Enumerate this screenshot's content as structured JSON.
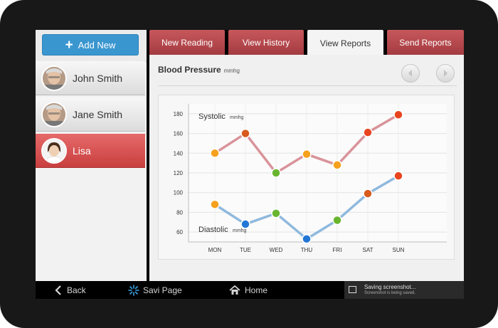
{
  "sidebar": {
    "add_label": "Add New",
    "contacts": [
      {
        "name": "John Smith"
      },
      {
        "name": "Jane Smith"
      },
      {
        "name": "Lisa"
      }
    ]
  },
  "tabs": [
    {
      "label": "New Reading"
    },
    {
      "label": "View History"
    },
    {
      "label": "View Reports"
    },
    {
      "label": "Send Reports"
    }
  ],
  "panel": {
    "title": "Blood Pressure",
    "unit": "mmhg"
  },
  "colors": {
    "accent": "#3a96cf",
    "tab_red": "#b5454a",
    "systolic_line": "#d9939a",
    "diastolic_line": "#8fb9de",
    "dot_orange": "#f5a11e",
    "dot_darkorange": "#d85a1d",
    "dot_red": "#e8451f",
    "dot_green": "#6ab530",
    "dot_blue": "#2277d6"
  },
  "chart_data": {
    "type": "line",
    "categories": [
      "MON",
      "TUE",
      "WED",
      "THU",
      "FRI",
      "SAT",
      "SUN"
    ],
    "ylim": [
      50,
      190
    ],
    "yticks": [
      60,
      80,
      100,
      120,
      140,
      160,
      180
    ],
    "grid": true,
    "series": [
      {
        "name": "Systolic",
        "unit": "mmhg",
        "values": [
          140,
          160,
          120,
          139,
          128,
          161,
          179
        ],
        "dot_colors": [
          "#f5a11e",
          "#d85a1d",
          "#6ab530",
          "#f5a11e",
          "#f5a11e",
          "#e8451f",
          "#e8451f"
        ]
      },
      {
        "name": "Diastolic",
        "unit": "mmhg",
        "values": [
          88,
          68,
          79,
          53,
          72,
          99,
          117
        ],
        "dot_colors": [
          "#f5a11e",
          "#2277d6",
          "#6ab530",
          "#2277d6",
          "#6ab530",
          "#d85a1d",
          "#e8451f"
        ]
      }
    ]
  },
  "bottom_bar": {
    "back_label": "Back",
    "app_label": "Savi Page",
    "home_label": "Home",
    "toast_title": "Saving screenshot...",
    "toast_sub": "Screenshot is being saved."
  }
}
